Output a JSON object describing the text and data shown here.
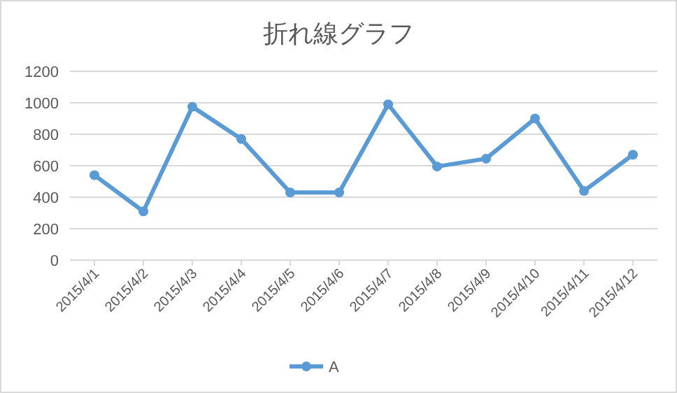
{
  "chart_data": {
    "type": "line",
    "title": "折れ線グラフ",
    "categories": [
      "2015/4/1",
      "2015/4/2",
      "2015/4/3",
      "2015/4/4",
      "2015/4/5",
      "2015/4/6",
      "2015/4/7",
      "2015/4/8",
      "2015/4/9",
      "2015/4/10",
      "2015/4/11",
      "2015/4/12"
    ],
    "series": [
      {
        "name": "A",
        "color": "#5b9bd5",
        "values": [
          540,
          310,
          975,
          770,
          430,
          430,
          990,
          595,
          645,
          900,
          440,
          670
        ]
      }
    ],
    "ylim": [
      0,
      1200
    ],
    "yticks": [
      0,
      200,
      400,
      600,
      800,
      1000,
      1200
    ],
    "grid": "y",
    "legend": "bottom",
    "marker": "circle",
    "line_style": "solid"
  }
}
